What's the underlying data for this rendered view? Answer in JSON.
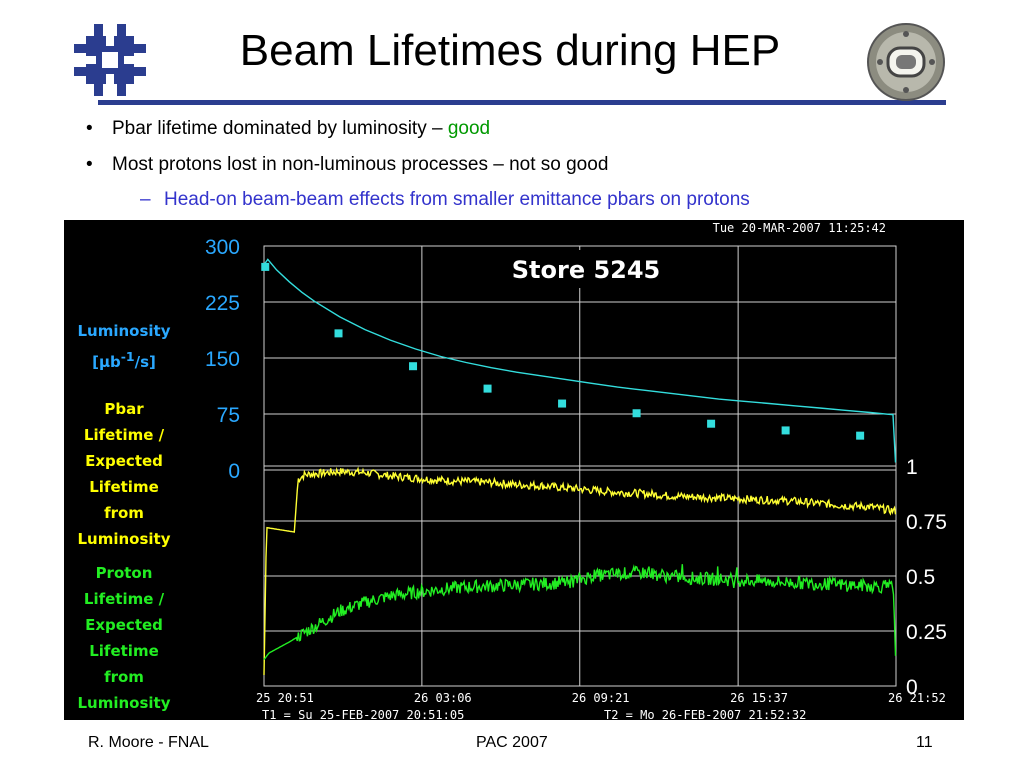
{
  "slide": {
    "title": "Beam Lifetimes during HEP",
    "bullets": [
      {
        "text": "Pbar lifetime dominated by luminosity – ",
        "highlight": "good",
        "highlight_color": "#009900"
      },
      {
        "text": "Most protons lost in non-luminous processes – not so good"
      },
      {
        "text": "Head-on beam-beam effects from smaller emittance pbars on protons",
        "color": "#3333cc"
      }
    ],
    "footer": {
      "left": "R. Moore - FNAL",
      "center": "PAC 2007",
      "right": "11"
    },
    "logo_icon": "fermilab-logo-icon",
    "medallion_icon": "accelerator-magnet-icon"
  },
  "chart_data": {
    "type": "line",
    "timestamp": "Tue 20-MAR-2007 11:25:42",
    "store_label": "Store 5245",
    "x_ticks": [
      "25 20:51",
      "26 03:06",
      "26 09:21",
      "26 15:37",
      "26 21:52"
    ],
    "x_tick_hours": [
      0,
      6.25,
      12.5,
      18.77,
      25.02
    ],
    "t1_label": "T1 = Su 25-FEB-2007 20:51:05",
    "t2_label": "T2 = Mo 26-FEB-2007 21:52:32",
    "xlim_hours": [
      0,
      25.02
    ],
    "left_axis": {
      "label": "Luminosity [μb-1/s]",
      "ticks": [
        "300",
        "225",
        "150",
        "75",
        "0"
      ],
      "tick_values": [
        300,
        225,
        150,
        75,
        0
      ],
      "ylim": [
        0,
        300
      ],
      "color": "#2aa8ff"
    },
    "right_axis": {
      "ticks": [
        "1",
        "0.75",
        "0.5",
        "0.25",
        "0"
      ],
      "tick_values": [
        1,
        0.75,
        0.5,
        0.25,
        0
      ],
      "ylim": [
        0,
        1
      ]
    },
    "colors": {
      "background": "#000000",
      "grid": "#d0d0d0",
      "luminosity": "#33dddd",
      "pbar": "#ffff33",
      "proton": "#22ee22",
      "axis_text": "#ffffff",
      "left_tick_text": "#2aa8ff"
    },
    "series": [
      {
        "name": "Luminosity [μb-1/s]",
        "axis": "left",
        "color": "#33dddd",
        "x": [
          0,
          0.15,
          0.5,
          1,
          1.5,
          2,
          3,
          4,
          5,
          6,
          7,
          8,
          9,
          10,
          11,
          12,
          13,
          14,
          15,
          16,
          17,
          18,
          19,
          20,
          21,
          22,
          23,
          24,
          24.9,
          25.0
        ],
        "y": [
          275,
          282,
          268,
          252,
          238,
          226,
          205,
          188,
          174,
          162,
          152,
          144,
          137,
          131,
          126,
          121,
          116,
          111,
          107,
          103,
          99,
          95,
          92,
          89,
          86,
          83,
          80,
          77,
          74,
          10
        ],
        "marker_x": [
          0.05,
          2.95,
          5.9,
          8.85,
          11.8,
          14.75,
          17.7,
          20.65,
          23.6
        ],
        "marker_y": [
          272,
          183,
          139,
          109,
          89,
          76,
          62,
          53,
          46
        ]
      },
      {
        "name": "Pbar Lifetime / Expected Lifetime from Luminosity",
        "axis": "right",
        "color": "#ffff33",
        "x": [
          0,
          0.1,
          1.2,
          1.35,
          1.6,
          2.5,
          3,
          4,
          5,
          6,
          7,
          8,
          9,
          10,
          11,
          12,
          13,
          14,
          15,
          16,
          17,
          18,
          19,
          20,
          21,
          22,
          23,
          24,
          25
        ],
        "y": [
          0.05,
          0.72,
          0.7,
          0.94,
          0.96,
          0.97,
          0.975,
          0.97,
          0.955,
          0.945,
          0.935,
          0.93,
          0.925,
          0.915,
          0.91,
          0.9,
          0.89,
          0.88,
          0.875,
          0.865,
          0.86,
          0.855,
          0.85,
          0.845,
          0.84,
          0.83,
          0.82,
          0.815,
          0.795
        ]
      },
      {
        "name": "Proton Lifetime / Expected Lifetime from Luminosity",
        "axis": "right",
        "color": "#22ee22",
        "x": [
          0,
          0.2,
          1,
          2,
          3,
          4,
          5,
          6,
          7,
          8,
          9,
          10,
          11,
          12,
          13,
          14,
          15,
          16,
          17,
          18,
          19,
          20,
          21,
          22,
          23,
          24,
          24.9,
          25
        ],
        "y": [
          0.12,
          0.15,
          0.2,
          0.27,
          0.34,
          0.38,
          0.41,
          0.425,
          0.44,
          0.45,
          0.455,
          0.46,
          0.465,
          0.47,
          0.5,
          0.51,
          0.515,
          0.5,
          0.49,
          0.485,
          0.48,
          0.475,
          0.47,
          0.465,
          0.46,
          0.455,
          0.45,
          0.15
        ]
      }
    ]
  }
}
